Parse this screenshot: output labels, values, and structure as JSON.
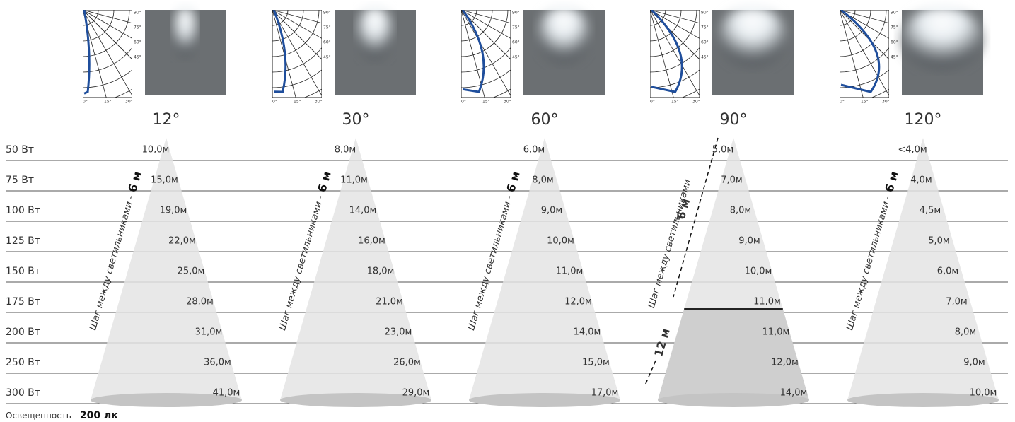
{
  "polar_axis": {
    "angles": [
      "90°",
      "75°",
      "60°",
      "45°"
    ],
    "bottom": [
      "0°",
      "15°",
      "30°"
    ]
  },
  "rows": [
    "50 Вт",
    "75 Вт",
    "100 Вт",
    "125 Вт",
    "150 Вт",
    "175 Вт",
    "200 Вт",
    "250 Вт",
    "300 Вт"
  ],
  "spacing_label": "Шаг между светильниками -",
  "spacing_label_short": "Шаг между светильниками",
  "spacing_dash": "-",
  "spacing_values": [
    "6 м",
    "12 м"
  ],
  "beams": [
    {
      "angle": "12°",
      "heights": [
        "10,0м",
        "15,0м",
        "19,0м",
        "22,0м",
        "25,0м",
        "28,0м",
        "31,0м",
        "36,0м",
        "41,0м"
      ]
    },
    {
      "angle": "30°",
      "heights": [
        "8,0м",
        "11,0м",
        "14,0м",
        "16,0м",
        "18,0м",
        "21,0м",
        "23,0м",
        "26,0м",
        "29,0м"
      ]
    },
    {
      "angle": "60°",
      "heights": [
        "6,0м",
        "8,0м",
        "9,0м",
        "10,0м",
        "11,0м",
        "12,0м",
        "14,0м",
        "15,0м",
        "17,0м"
      ]
    },
    {
      "angle": "90°",
      "heights": [
        "5,0м",
        "7,0м",
        "8,0м",
        "9,0м",
        "10,0м",
        "11,0м",
        "11,0м",
        "12,0м",
        "14,0м"
      ]
    },
    {
      "angle": "120°",
      "heights": [
        "<4,0м",
        "4,0м",
        "4,5м",
        "5,0м",
        "6,0м",
        "7,0м",
        "8,0м",
        "9,0м",
        "10,0м"
      ]
    }
  ],
  "footer": {
    "label": "Освещенность -",
    "value": "200 лк"
  }
}
